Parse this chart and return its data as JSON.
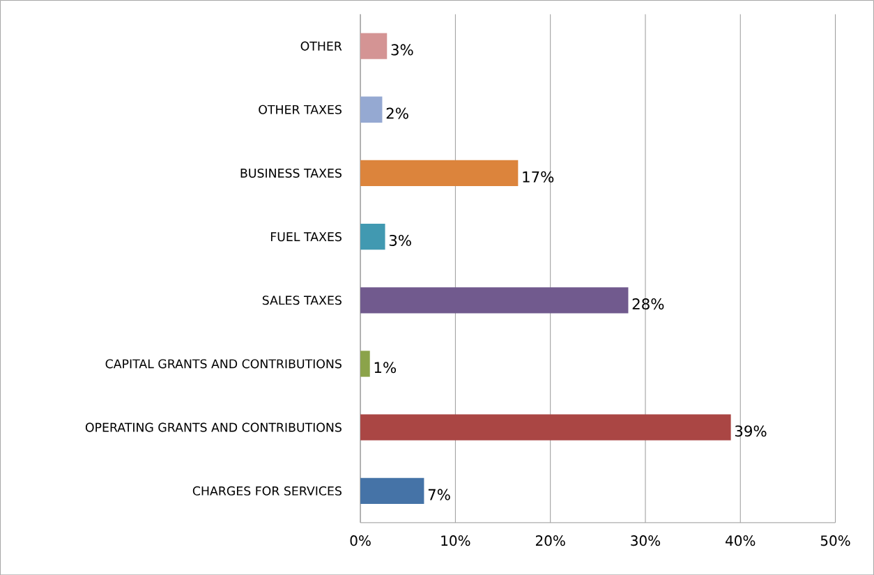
{
  "chart_data": {
    "type": "bar",
    "orientation": "horizontal",
    "categories": [
      "OTHER",
      "OTHER TAXES",
      "BUSINESS TAXES",
      "FUEL TAXES",
      "SALES TAXES",
      "CAPITAL GRANTS AND CONTRIBUTIONS",
      "OPERATING GRANTS AND CONTRIBUTIONS",
      "CHARGES FOR SERVICES"
    ],
    "values": [
      2.8,
      2.3,
      16.6,
      2.6,
      28.2,
      1.0,
      39.0,
      6.7
    ],
    "colors": [
      "#d49494",
      "#95a9d2",
      "#dc843c",
      "#4199b1",
      "#715a8e",
      "#8ba34a",
      "#aa4644",
      "#4573a7"
    ],
    "value_labels": [
      "3%",
      "2%",
      "17%",
      "3%",
      "28%",
      "1%",
      "39%",
      "7%"
    ],
    "xlim": [
      0,
      50
    ],
    "xticks": [
      {
        "value": 0,
        "label": "0%"
      },
      {
        "value": 10,
        "label": "10%"
      },
      {
        "value": 20,
        "label": "20%"
      },
      {
        "value": 30,
        "label": "30%"
      },
      {
        "value": 40,
        "label": "40%"
      },
      {
        "value": 50,
        "label": "50%"
      }
    ],
    "grid": "x"
  }
}
